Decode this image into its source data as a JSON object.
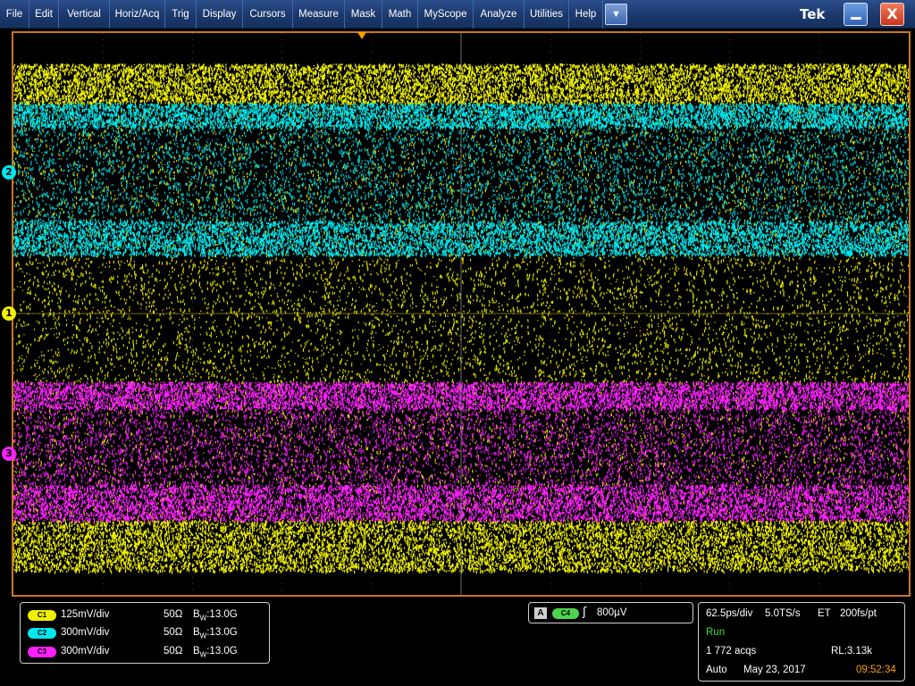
{
  "menu": [
    {
      "label": "File"
    },
    {
      "label": "Edit"
    },
    {
      "label": "Vertical"
    },
    {
      "label": "Horiz/Acq"
    },
    {
      "label": "Trig"
    },
    {
      "label": "Display"
    },
    {
      "label": "Cursors"
    },
    {
      "label": "Measure"
    },
    {
      "label": "Mask"
    },
    {
      "label": "Math"
    },
    {
      "label": "MyScope"
    },
    {
      "label": "Analyze"
    },
    {
      "label": "Utilities"
    },
    {
      "label": "Help"
    }
  ],
  "toolbar": {
    "dropdown_icon": "chevron-down-icon",
    "dropdown_glyph": "▼"
  },
  "brand": "Tek",
  "window": {
    "close_glyph": "X",
    "minimize_icon": "minimize-icon"
  },
  "colors": {
    "ch1": "#f0f000",
    "ch2": "#00e8ee",
    "ch3": "#ff20ff",
    "ch4": "#4cd44c",
    "frame": "#c8781e",
    "trigger_marker": "#f5a000",
    "time": "#f5a000",
    "status_run": "#3cdc3c"
  },
  "markers": [
    {
      "label": "2",
      "color": "#00e8ee"
    },
    {
      "label": "1",
      "color": "#f0f000"
    },
    {
      "label": "3",
      "color": "#ff20ff"
    }
  ],
  "channels": [
    {
      "badge": "C1",
      "scale": "125mV/div",
      "impedance": "50Ω",
      "bw_prefix": "B",
      "bw_sub": "W",
      "bw": ":13.0G",
      "color": "#f0f000"
    },
    {
      "badge": "C2",
      "scale": "300mV/div",
      "impedance": "50Ω",
      "bw_prefix": "B",
      "bw_sub": "W",
      "bw": ":13.0G",
      "color": "#00e8ee"
    },
    {
      "badge": "C3",
      "scale": "300mV/div",
      "impedance": "50Ω",
      "bw_prefix": "B",
      "bw_sub": "W",
      "bw": ":13.0G",
      "color": "#ff20ff"
    }
  ],
  "trigger": {
    "mode": "A",
    "source": "C4",
    "slope_glyph": "ʃ",
    "level": "800µV"
  },
  "acquisition": {
    "timebase": "62.5ps/div",
    "sample_rate": "5.0TS/s",
    "mode": "ET",
    "resolution": "200fs/pt",
    "status": "Run",
    "acqs": "1 772 acqs",
    "record_length": "RL:3.13k",
    "trigger_mode": "Auto",
    "date": "May 23, 2017",
    "time": "09:52:34"
  }
}
